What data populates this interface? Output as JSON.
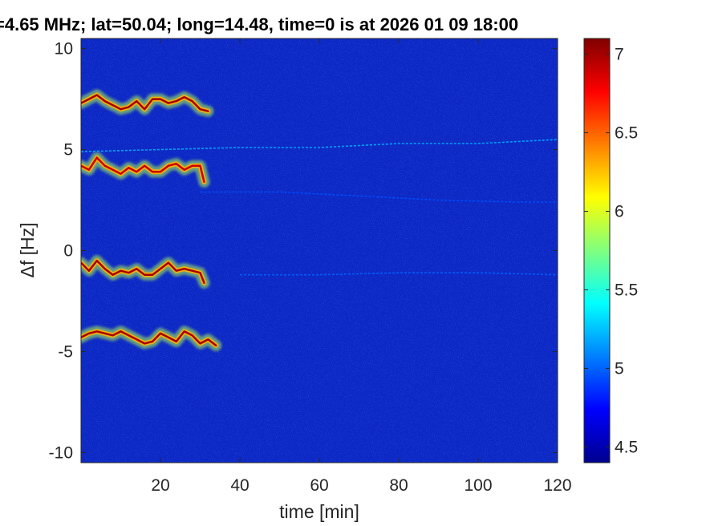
{
  "chart_data": {
    "type": "heatmap",
    "title": "=4.65 MHz;  lat=50.04; long=14.48, time=0 is at 2026 01 09 18:00",
    "xlabel": "time [min]",
    "ylabel": "Δf [Hz]",
    "xlim": [
      0,
      120
    ],
    "ylim": [
      -10.5,
      10.5
    ],
    "xticks": [
      20,
      40,
      60,
      80,
      100,
      120
    ],
    "yticks": [
      -10,
      -5,
      0,
      5,
      10
    ],
    "colorbar": {
      "range": [
        4.4,
        7.1
      ],
      "ticks": [
        4.5,
        5,
        5.5,
        6,
        6.5,
        7
      ],
      "colormap": "jet"
    },
    "traces": [
      {
        "x": [
          0,
          2,
          4,
          6,
          8,
          10,
          12,
          14,
          16,
          18,
          20,
          22,
          24,
          26,
          28,
          30,
          32
        ],
        "y": [
          7.3,
          7.5,
          7.7,
          7.4,
          7.2,
          7.0,
          7.1,
          7.4,
          7.0,
          7.5,
          7.5,
          7.3,
          7.4,
          7.6,
          7.4,
          7.0,
          6.9
        ],
        "intensity": 7.0
      },
      {
        "x": [
          0,
          2,
          4,
          6,
          8,
          10,
          12,
          14,
          16,
          18,
          20,
          22,
          24,
          26,
          28,
          30,
          31
        ],
        "y": [
          4.2,
          4.0,
          4.6,
          4.2,
          4.0,
          3.8,
          4.1,
          3.9,
          4.2,
          3.9,
          3.9,
          4.2,
          4.3,
          4.0,
          4.2,
          4.2,
          3.4
        ],
        "intensity": 6.9
      },
      {
        "x": [
          0,
          2,
          4,
          6,
          8,
          10,
          12,
          14,
          16,
          18,
          20,
          22,
          24,
          26,
          28,
          30,
          31
        ],
        "y": [
          -0.6,
          -1.0,
          -0.5,
          -0.9,
          -1.2,
          -1.0,
          -1.1,
          -0.9,
          -1.2,
          -1.2,
          -0.9,
          -0.6,
          -1.0,
          -0.9,
          -1.0,
          -1.1,
          -1.6
        ],
        "intensity": 7.0
      },
      {
        "x": [
          0,
          2,
          4,
          6,
          8,
          10,
          12,
          14,
          16,
          18,
          20,
          22,
          24,
          26,
          28,
          30,
          32,
          34
        ],
        "y": [
          -4.3,
          -4.1,
          -4.0,
          -4.1,
          -4.2,
          -4.0,
          -4.2,
          -4.4,
          -4.6,
          -4.5,
          -4.1,
          -4.3,
          -4.5,
          -4.0,
          -4.2,
          -4.6,
          -4.4,
          -4.7
        ],
        "intensity": 7.0
      },
      {
        "x": [
          0,
          20,
          40,
          60,
          80,
          100,
          120
        ],
        "y": [
          4.9,
          5.0,
          5.1,
          5.1,
          5.3,
          5.3,
          5.5
        ],
        "intensity": 5.2
      },
      {
        "x": [
          30,
          50,
          70,
          90,
          110,
          120
        ],
        "y": [
          2.9,
          2.9,
          2.7,
          2.5,
          2.4,
          2.4
        ],
        "intensity": 4.95
      },
      {
        "x": [
          40,
          60,
          80,
          100,
          120
        ],
        "y": [
          -1.2,
          -1.2,
          -1.1,
          -1.1,
          -1.2
        ],
        "intensity": 5.0
      }
    ]
  }
}
